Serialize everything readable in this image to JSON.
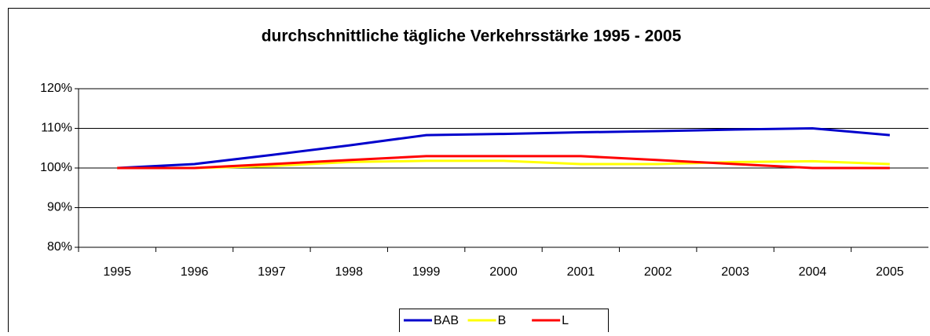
{
  "chart_data": {
    "type": "line",
    "title": "durchschnittliche tägliche Verkehrsstärke 1995 - 2005",
    "categories": [
      "1995",
      "1996",
      "1997",
      "1998",
      "1999",
      "2000",
      "2001",
      "2002",
      "2003",
      "2004",
      "2005"
    ],
    "series": [
      {
        "name": "BAB",
        "color": "#0000cc",
        "values": [
          100,
          101,
          103.3,
          105.7,
          108.3,
          108.6,
          109,
          109.3,
          109.7,
          110,
          108.3
        ]
      },
      {
        "name": "B",
        "color": "#ffff00",
        "values": [
          100,
          100,
          100.5,
          101.5,
          101.8,
          101.8,
          101,
          101,
          101.5,
          101.7,
          101
        ]
      },
      {
        "name": "L",
        "color": "#ff0000",
        "values": [
          100,
          100,
          101,
          102,
          103,
          103,
          103,
          102,
          101,
          100,
          100
        ]
      }
    ],
    "ylim": [
      80,
      120
    ],
    "yticks": [
      {
        "value": 80,
        "label": "80%"
      },
      {
        "value": 90,
        "label": "90%"
      },
      {
        "value": 100,
        "label": "100%"
      },
      {
        "value": 110,
        "label": "110%"
      },
      {
        "value": 120,
        "label": "120%"
      }
    ],
    "grid": true,
    "legend": "bottom"
  }
}
